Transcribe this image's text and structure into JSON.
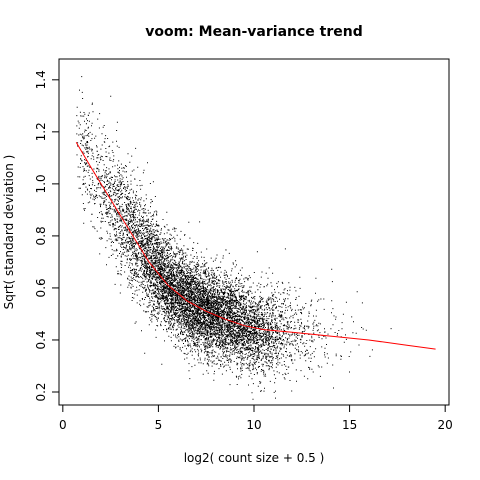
{
  "chart_data": {
    "type": "scatter",
    "title": "voom: Mean-variance trend",
    "xlabel": "log2( count size + 0.5 )",
    "ylabel": "Sqrt( standard deviation )",
    "xlim": [
      -0.2,
      20.2
    ],
    "ylim": [
      0.15,
      1.48
    ],
    "xticks": [
      0,
      5,
      10,
      15,
      20
    ],
    "yticks": [
      0.2,
      0.4,
      0.6,
      0.8,
      1.0,
      1.2,
      1.4
    ],
    "ytick_labels": [
      "0.2",
      "0.4",
      "0.6",
      "0.8",
      "1.0",
      "1.2",
      "1.4"
    ],
    "grid": false,
    "point_color": "#000000",
    "trend_color": "#ff0000",
    "trend_line": {
      "x": [
        0.7,
        1.5,
        2.5,
        3.5,
        4.5,
        5.5,
        6.5,
        7.5,
        8.5,
        9.5,
        10.5,
        12.0,
        14.0,
        16.0,
        18.0,
        19.5
      ],
      "y": [
        1.16,
        1.06,
        0.94,
        0.82,
        0.7,
        0.61,
        0.55,
        0.51,
        0.48,
        0.455,
        0.44,
        0.43,
        0.415,
        0.4,
        0.38,
        0.365
      ]
    },
    "scatter_cloud": {
      "n_points": 9000,
      "x_center": 7.0,
      "x_spread": 2.6,
      "x_range": [
        0.7,
        19.5
      ],
      "y_noise": 0.085,
      "y_range": [
        0.17,
        1.44
      ]
    }
  }
}
